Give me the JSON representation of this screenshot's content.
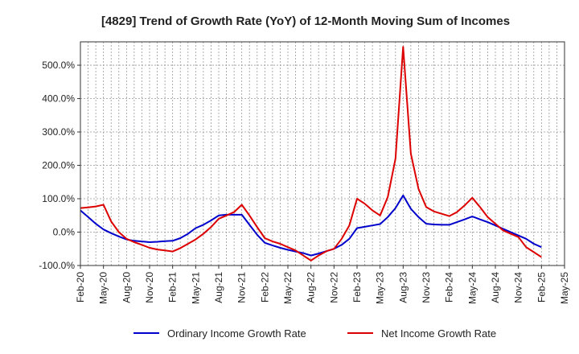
{
  "chart_data": {
    "type": "line",
    "title": "[4829]  Trend of Growth Rate (YoY) of 12-Month Moving Sum of Incomes",
    "xlabel": "",
    "ylabel": "",
    "ylim": [
      -100,
      570
    ],
    "yticks": [
      -100,
      0,
      100,
      200,
      300,
      400,
      500
    ],
    "ytick_labels": [
      "-100.0%",
      "0.0%",
      "100.0%",
      "200.0%",
      "300.0%",
      "400.0%",
      "500.0%"
    ],
    "x_tick_labels": [
      "Feb-20",
      "May-20",
      "Aug-20",
      "Nov-20",
      "Feb-21",
      "May-21",
      "Aug-21",
      "Nov-21",
      "Feb-22",
      "May-22",
      "Aug-22",
      "Nov-22",
      "Feb-23",
      "May-23",
      "Aug-23",
      "Nov-23",
      "Feb-24",
      "May-24",
      "Aug-24",
      "Nov-24",
      "Feb-25",
      "May-25"
    ],
    "x": [
      "Feb-20",
      "Mar-20",
      "Apr-20",
      "May-20",
      "Jun-20",
      "Jul-20",
      "Aug-20",
      "Sep-20",
      "Oct-20",
      "Nov-20",
      "Dec-20",
      "Jan-21",
      "Feb-21",
      "Mar-21",
      "Apr-21",
      "May-21",
      "Jun-21",
      "Jul-21",
      "Aug-21",
      "Sep-21",
      "Oct-21",
      "Nov-21",
      "Dec-21",
      "Jan-22",
      "Feb-22",
      "Mar-22",
      "Apr-22",
      "May-22",
      "Jun-22",
      "Jul-22",
      "Aug-22",
      "Sep-22",
      "Oct-22",
      "Nov-22",
      "Dec-22",
      "Jan-23",
      "Feb-23",
      "Mar-23",
      "Apr-23",
      "May-23",
      "Jun-23",
      "Jul-23",
      "Aug-23",
      "Sep-23",
      "Oct-23",
      "Nov-23",
      "Dec-23",
      "Jan-24",
      "Feb-24",
      "Mar-24",
      "Apr-24",
      "May-24",
      "Jun-24",
      "Jul-24",
      "Aug-24",
      "Sep-24",
      "Oct-24",
      "Nov-24",
      "Dec-24",
      "Jan-25",
      "Feb-25"
    ],
    "grid": true,
    "legend_position": "bottom",
    "series": [
      {
        "name": "Ordinary Income Growth Rate",
        "color": "#0000cc",
        "values": [
          65,
          45,
          25,
          8,
          -3,
          -13,
          -22,
          -26,
          -28,
          -30,
          -29,
          -27,
          -26,
          -18,
          -5,
          12,
          22,
          35,
          50,
          52,
          52,
          52,
          22,
          -8,
          -32,
          -40,
          -47,
          -53,
          -58,
          -63,
          -70,
          -64,
          -57,
          -50,
          -38,
          -20,
          12,
          16,
          20,
          24,
          45,
          72,
          110,
          70,
          45,
          25,
          23,
          22,
          22,
          30,
          38,
          47,
          38,
          30,
          20,
          10,
          0,
          -10,
          -20,
          -35,
          -45
        ]
      },
      {
        "name": "Net Income Growth Rate",
        "color": "#dd0000",
        "values": [
          72,
          74,
          77,
          82,
          32,
          0,
          -20,
          -30,
          -38,
          -47,
          -52,
          -55,
          -58,
          -48,
          -35,
          -22,
          -5,
          15,
          40,
          50,
          60,
          82,
          50,
          15,
          -18,
          -28,
          -35,
          -45,
          -55,
          -70,
          -85,
          -70,
          -57,
          -50,
          -20,
          20,
          100,
          85,
          65,
          50,
          105,
          220,
          555,
          235,
          130,
          75,
          62,
          55,
          48,
          60,
          80,
          103,
          75,
          45,
          25,
          5,
          -5,
          -15,
          -45,
          -60,
          -75
        ]
      }
    ]
  }
}
